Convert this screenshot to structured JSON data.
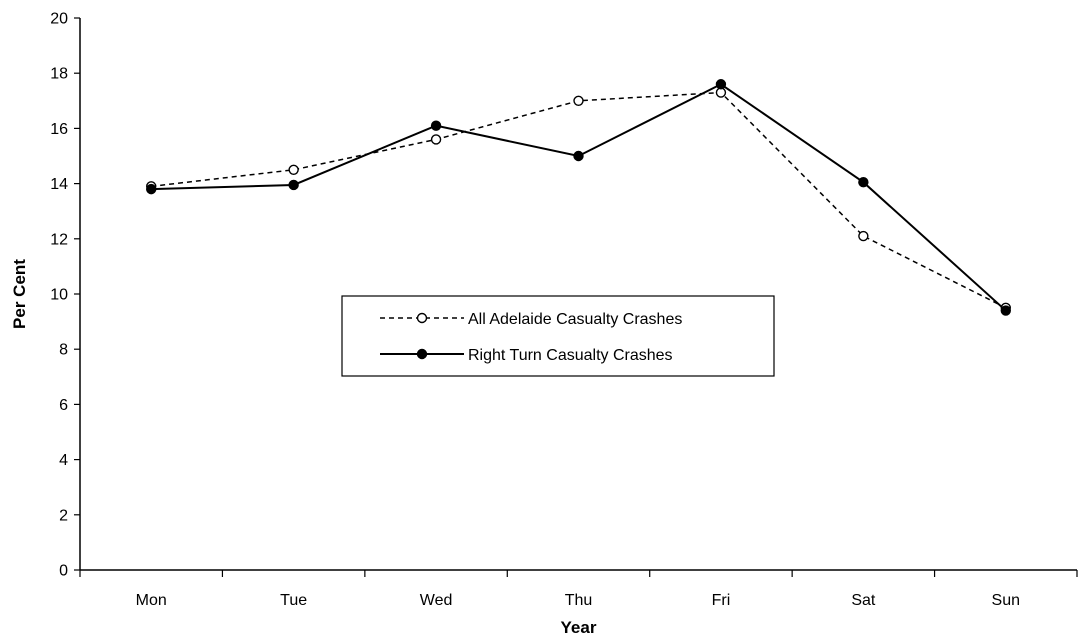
{
  "chart_data": {
    "type": "line",
    "title": "",
    "xlabel": "Year",
    "ylabel": "Per Cent",
    "categories": [
      "Mon",
      "Tue",
      "Wed",
      "Thu",
      "Fri",
      "Sat",
      "Sun"
    ],
    "ylim": [
      0,
      20
    ],
    "yticks": [
      "0",
      "2",
      "4",
      "6",
      "8",
      "10",
      "12",
      "14",
      "16",
      "18",
      "20"
    ],
    "grid": false,
    "legend_position": "center",
    "series": [
      {
        "name": "All Adelaide Casualty Crashes",
        "values": [
          13.9,
          14.5,
          15.6,
          17.0,
          17.3,
          12.1,
          9.5
        ],
        "line_style": "dashed",
        "marker": "open-circle",
        "color": "#000000"
      },
      {
        "name": "Right Turn Casualty Crashes",
        "values": [
          13.8,
          13.95,
          16.1,
          15.0,
          17.6,
          14.05,
          9.4
        ],
        "line_style": "solid",
        "marker": "filled-circle",
        "color": "#000000"
      }
    ]
  }
}
